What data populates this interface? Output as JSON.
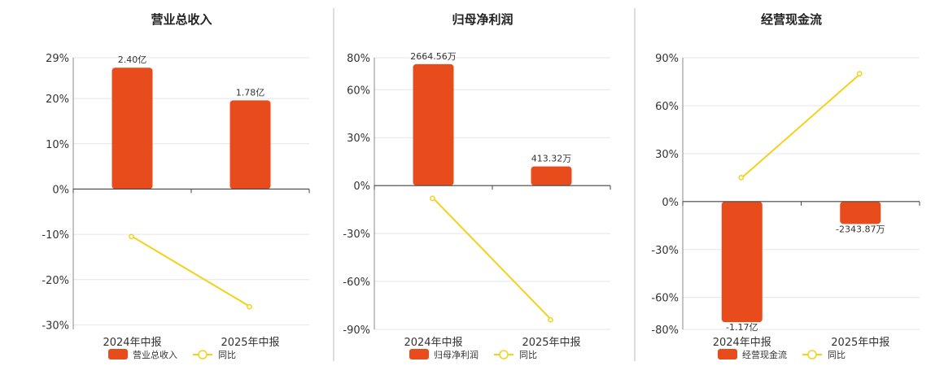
{
  "legend": {
    "yoy_label": "同比"
  },
  "colors": {
    "bar": "#E84C1C",
    "line": "#F2D21C",
    "grid": "#E4E4EE",
    "axis": "#444444",
    "divider": "#BBBBBB"
  },
  "chart_data": [
    {
      "type": "bar",
      "title": "营业总收入",
      "categories": [
        "2024年中报",
        "2025年中报"
      ],
      "bar_series_name": "营业总收入",
      "bar_percent": [
        26.8,
        19.6
      ],
      "bar_labels": [
        "2.40亿",
        "1.78亿"
      ],
      "yoy_percent": [
        -10.5,
        -26.0
      ],
      "ylim": [
        -31,
        29
      ],
      "ticks": [
        29,
        20,
        10,
        0,
        -10,
        -20,
        -30
      ],
      "tick_labels": [
        "29%",
        "20%",
        "10%",
        "0%",
        "-10%",
        "-20%",
        "-30%"
      ]
    },
    {
      "type": "bar",
      "title": "归母净利润",
      "categories": [
        "2024年中报",
        "2025年中报"
      ],
      "bar_series_name": "归母净利润",
      "bar_percent": [
        76,
        12
      ],
      "bar_labels": [
        "2664.56万",
        "413.32万"
      ],
      "yoy_percent": [
        -8,
        -84
      ],
      "ylim": [
        -90,
        80
      ],
      "ticks": [
        80,
        60,
        30,
        0,
        -30,
        -60,
        -90
      ],
      "tick_labels": [
        "80%",
        "60%",
        "30%",
        "0%",
        "-30%",
        "-60%",
        "-90%"
      ]
    },
    {
      "type": "bar",
      "title": "经营现金流",
      "categories": [
        "2024年中报",
        "2025年中报"
      ],
      "bar_series_name": "经营现金流",
      "bar_percent": [
        -75.5,
        -14
      ],
      "bar_labels": [
        "-1.17亿",
        "-2343.87万"
      ],
      "yoy_percent": [
        15,
        80
      ],
      "ylim": [
        -80,
        90
      ],
      "ticks": [
        90,
        60,
        30,
        0,
        -30,
        -60,
        -80
      ],
      "tick_labels": [
        "90%",
        "60%",
        "30%",
        "0%",
        "-30%",
        "-60%",
        "-80%"
      ]
    }
  ]
}
